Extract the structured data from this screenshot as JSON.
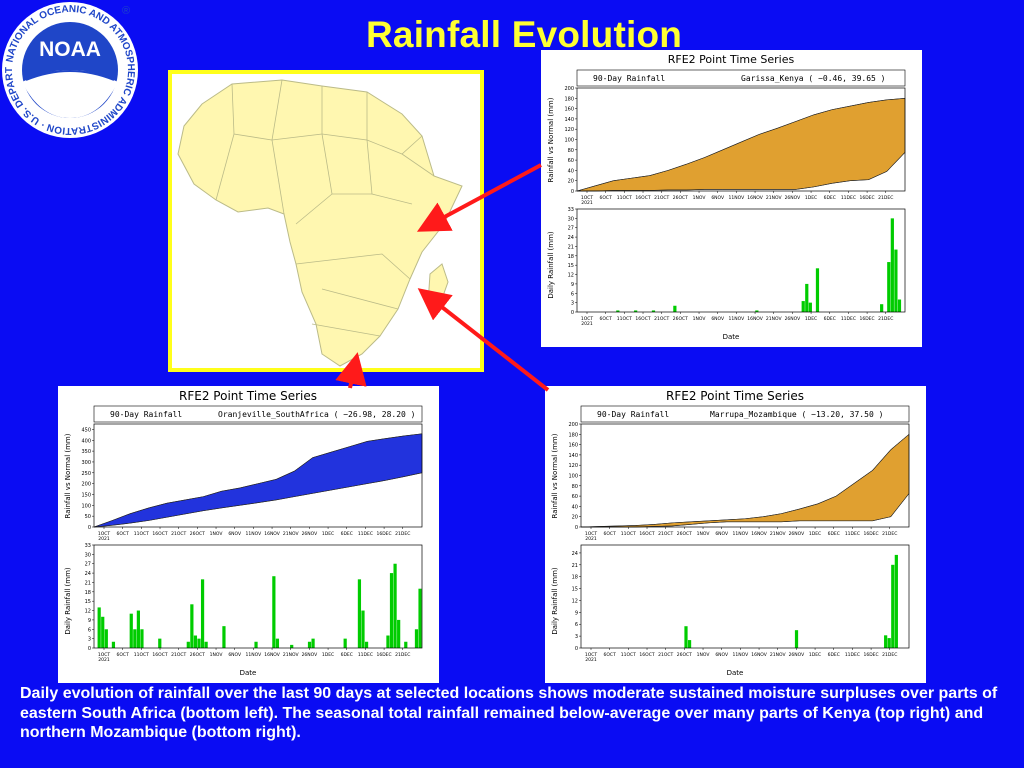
{
  "slide": {
    "title": "Rainfall Evolution",
    "caption": "Daily evolution of rainfall over the last 90 days at selected locations shows moderate sustained moisture surpluses over parts of eastern South Africa (bottom left). The seasonal total rainfall remained below-average over many parts of Kenya (top right) and northern Mozambique (bottom right).",
    "logo": {
      "icon": "noaa-seal-icon",
      "center_text": "NOAA",
      "ring_text": "NATIONAL OCEANIC AND ATMOSPHERIC ADMINISTRATION · U.S. DEPARTMENT OF COMMERCE"
    },
    "colors": {
      "background": "#0a0cf3",
      "title": "#ffff33",
      "arrow": "#ff1a1a",
      "map_land": "#fff7b0",
      "map_border": "#ffff1a"
    }
  },
  "chart_data": [
    {
      "type": "area",
      "panel_title": "RFE2 Point Time Series",
      "subtitle": "90-Day Rainfall",
      "location": "Garissa_Kenya ( −0.46, 39.65 )",
      "ylabel": "Rainfall vs Normal (mm)",
      "ylim": [
        0,
        200
      ],
      "yticks": [
        0,
        20,
        40,
        60,
        80,
        100,
        120,
        140,
        160,
        180,
        200
      ],
      "fill_color": "#e0a030",
      "x": [
        0,
        5,
        10,
        15,
        20,
        25,
        30,
        35,
        40,
        45,
        50,
        55,
        60,
        65,
        70,
        75,
        80,
        85,
        90
      ],
      "normal": [
        0,
        10,
        20,
        25,
        30,
        40,
        52,
        65,
        80,
        95,
        110,
        122,
        135,
        148,
        158,
        165,
        172,
        177,
        180
      ],
      "observed": [
        0,
        0,
        1,
        1,
        1,
        2,
        2,
        3,
        3,
        3,
        3,
        3,
        3,
        8,
        15,
        20,
        22,
        38,
        75
      ]
    },
    {
      "type": "bar",
      "ylabel": "Daily Rainfall (mm)",
      "xlabel": "Date",
      "ylim": [
        0,
        33
      ],
      "yticks": [
        0,
        3,
        6,
        9,
        12,
        15,
        18,
        21,
        24,
        27,
        30,
        33
      ],
      "bar_color": "#00cc00",
      "bars": [
        [
          11,
          0.5
        ],
        [
          16,
          0.5
        ],
        [
          21,
          0.5
        ],
        [
          27,
          2
        ],
        [
          50,
          0.5
        ],
        [
          63,
          3.5
        ],
        [
          64,
          9
        ],
        [
          65,
          3
        ],
        [
          67,
          14
        ],
        [
          85,
          2.5
        ],
        [
          87,
          16
        ],
        [
          88,
          30
        ],
        [
          89,
          20
        ],
        [
          90,
          4
        ]
      ]
    },
    {
      "type": "area",
      "panel_title": "RFE2 Point Time Series",
      "subtitle": "90-Day Rainfall",
      "location": "Oranjeville_SouthAfrica ( −26.98, 28.20 )",
      "ylabel": "Rainfall vs Normal (mm)",
      "ylim": [
        0,
        475
      ],
      "yticks": [
        0,
        50,
        100,
        150,
        200,
        250,
        300,
        350,
        400,
        450
      ],
      "fill_color": "#2233dd",
      "x": [
        0,
        5,
        10,
        15,
        20,
        25,
        30,
        35,
        40,
        45,
        50,
        55,
        60,
        65,
        70,
        75,
        80,
        85,
        90
      ],
      "observed": [
        0,
        30,
        62,
        88,
        110,
        125,
        140,
        165,
        180,
        200,
        220,
        258,
        320,
        345,
        370,
        395,
        408,
        420,
        430
      ],
      "normal": [
        0,
        8,
        18,
        30,
        45,
        60,
        75,
        88,
        100,
        112,
        125,
        140,
        155,
        170,
        185,
        200,
        215,
        232,
        250
      ]
    },
    {
      "type": "bar",
      "ylabel": "Daily Rainfall (mm)",
      "xlabel": "Date",
      "ylim": [
        0,
        33
      ],
      "yticks": [
        0,
        3,
        6,
        9,
        12,
        15,
        18,
        21,
        24,
        27,
        30,
        33
      ],
      "bar_color": "#00cc00",
      "bars": [
        [
          1,
          13
        ],
        [
          2,
          10
        ],
        [
          3,
          6
        ],
        [
          5,
          2
        ],
        [
          10,
          11
        ],
        [
          11,
          6
        ],
        [
          12,
          12
        ],
        [
          13,
          6
        ],
        [
          18,
          3
        ],
        [
          26,
          2
        ],
        [
          27,
          14
        ],
        [
          28,
          4
        ],
        [
          29,
          3
        ],
        [
          30,
          22
        ],
        [
          31,
          2
        ],
        [
          36,
          7
        ],
        [
          45,
          2
        ],
        [
          50,
          23
        ],
        [
          51,
          3
        ],
        [
          55,
          1
        ],
        [
          60,
          2
        ],
        [
          61,
          3
        ],
        [
          70,
          3
        ],
        [
          74,
          22
        ],
        [
          75,
          12
        ],
        [
          76,
          2
        ],
        [
          82,
          4
        ],
        [
          83,
          24
        ],
        [
          84,
          27
        ],
        [
          85,
          9
        ],
        [
          87,
          2
        ],
        [
          90,
          6
        ],
        [
          91,
          19
        ]
      ]
    },
    {
      "type": "area",
      "panel_title": "RFE2 Point Time Series",
      "subtitle": "90-Day Rainfall",
      "location": "Marrupa_Mozambique ( −13.20, 37.50 )",
      "ylabel": "Rainfall vs Normal (mm)",
      "ylim": [
        0,
        200
      ],
      "yticks": [
        0,
        20,
        40,
        60,
        80,
        100,
        120,
        140,
        160,
        180,
        200
      ],
      "fill_color": "#e0a030",
      "x": [
        0,
        5,
        10,
        15,
        20,
        25,
        30,
        35,
        40,
        45,
        50,
        55,
        60,
        65,
        70,
        75,
        80,
        85,
        90
      ],
      "normal": [
        0,
        1,
        2,
        3,
        5,
        8,
        10,
        12,
        14,
        16,
        20,
        26,
        35,
        45,
        60,
        85,
        110,
        150,
        180
      ],
      "observed": [
        0,
        0,
        0,
        0,
        1,
        2,
        5,
        8,
        10,
        10,
        10,
        10,
        12,
        12,
        12,
        12,
        12,
        20,
        65
      ]
    },
    {
      "type": "bar",
      "ylabel": "Daily Rainfall (mm)",
      "xlabel": "Date",
      "ylim": [
        0,
        26
      ],
      "yticks": [
        0,
        3,
        6,
        9,
        12,
        15,
        18,
        21,
        24
      ],
      "bar_color": "#00cc00",
      "bars": [
        [
          29,
          5.5
        ],
        [
          30,
          2
        ],
        [
          60,
          4.5
        ],
        [
          85,
          3.2
        ],
        [
          86,
          2.5
        ],
        [
          87,
          21
        ],
        [
          88,
          23.5
        ]
      ]
    }
  ],
  "axis": {
    "date_ticks": [
      "1OCT\n2021",
      "6OCT",
      "11OCT",
      "16OCT",
      "21OCT",
      "26OCT",
      "1NOV",
      "6NOV",
      "11NOV",
      "16NOV",
      "21NOV",
      "26NOV",
      "1DEC",
      "6DEC",
      "11DEC",
      "16DEC",
      "21DEC"
    ]
  }
}
